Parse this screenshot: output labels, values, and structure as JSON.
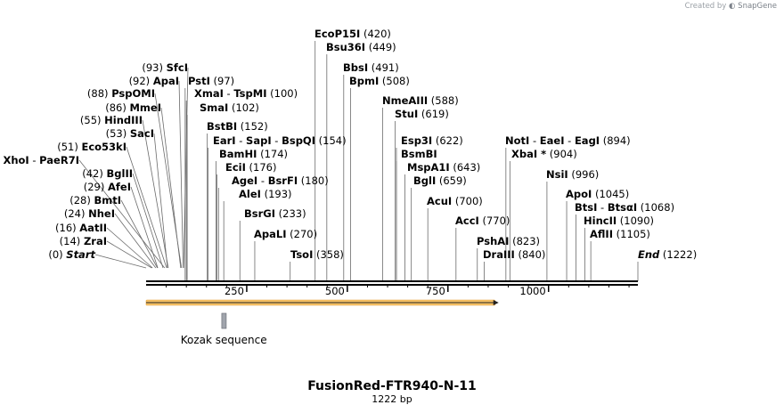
{
  "credit": {
    "prefix": "Created by",
    "brand": "SnapGene"
  },
  "title": "FusionRed-FTR940-N-11",
  "length_label": "1222 bp",
  "sequence_length": 1222,
  "axis_ticks": [
    250,
    500,
    750,
    1000
  ],
  "features": [
    {
      "name": "Kozak sequence",
      "type": "misc",
      "start": 188,
      "end": 198,
      "color": "#a0a4ac"
    },
    {
      "name": "",
      "type": "cds",
      "start": 1,
      "end": 876,
      "color": "#f6c267"
    }
  ],
  "sites": [
    {
      "parts": [
        {
          "t": "Start",
          "italic": true
        }
      ],
      "pos": "(0)",
      "loc": 0
    },
    {
      "parts": [
        {
          "t": "ZraI"
        }
      ],
      "pos": "(14)",
      "loc": 14
    },
    {
      "parts": [
        {
          "t": "AatII"
        }
      ],
      "pos": "(16)",
      "loc": 16
    },
    {
      "parts": [
        {
          "t": "NheI"
        }
      ],
      "pos": "(24)",
      "loc": 24
    },
    {
      "parts": [
        {
          "t": "BmtI"
        }
      ],
      "pos": "(28)",
      "loc": 28
    },
    {
      "parts": [
        {
          "t": "AfeI"
        }
      ],
      "pos": "(29)",
      "loc": 29
    },
    {
      "parts": [
        {
          "t": "BglII"
        }
      ],
      "pos": "(42)",
      "loc": 42
    },
    {
      "parts": [
        {
          "t": "XhoI"
        },
        {
          "t": " - ",
          "plain": true
        },
        {
          "t": "PaeR7I"
        }
      ],
      "pos": "(46)",
      "loc": 46
    },
    {
      "parts": [
        {
          "t": "Eco53kI"
        }
      ],
      "pos": "(51)",
      "loc": 51
    },
    {
      "parts": [
        {
          "t": "SacI"
        }
      ],
      "pos": "(53)",
      "loc": 53
    },
    {
      "parts": [
        {
          "t": "HindIII"
        }
      ],
      "pos": "(55)",
      "loc": 55
    },
    {
      "parts": [
        {
          "t": "MmeI"
        }
      ],
      "pos": "(86)",
      "loc": 86
    },
    {
      "parts": [
        {
          "t": "PspOMI"
        }
      ],
      "pos": "(88)",
      "loc": 88
    },
    {
      "parts": [
        {
          "t": "ApaI"
        }
      ],
      "pos": "(92)",
      "loc": 92
    },
    {
      "parts": [
        {
          "t": "SfcI"
        }
      ],
      "pos": "(93)",
      "loc": 93
    },
    {
      "parts": [
        {
          "t": "PstI"
        }
      ],
      "pos": "(97)",
      "loc": 97
    },
    {
      "parts": [
        {
          "t": "XmaI"
        },
        {
          "t": " - ",
          "plain": true
        },
        {
          "t": "TspMI"
        }
      ],
      "pos": "(100)",
      "loc": 100
    },
    {
      "parts": [
        {
          "t": "SmaI"
        }
      ],
      "pos": "(102)",
      "loc": 102
    },
    {
      "parts": [
        {
          "t": "BstBI"
        }
      ],
      "pos": "(152)",
      "loc": 152
    },
    {
      "parts": [
        {
          "t": "EarI"
        },
        {
          "t": " - ",
          "plain": true
        },
        {
          "t": "SapI"
        },
        {
          "t": " - ",
          "plain": true
        },
        {
          "t": "BspQI"
        }
      ],
      "pos": "(154)",
      "loc": 154
    },
    {
      "parts": [
        {
          "t": "BamHI"
        }
      ],
      "pos": "(174)",
      "loc": 174
    },
    {
      "parts": [
        {
          "t": "EciI"
        }
      ],
      "pos": "(176)",
      "loc": 176
    },
    {
      "parts": [
        {
          "t": "AgeI"
        },
        {
          "t": " - ",
          "plain": true
        },
        {
          "t": "BsrFI"
        }
      ],
      "pos": "(180)",
      "loc": 180
    },
    {
      "parts": [
        {
          "t": "AleI"
        }
      ],
      "pos": "(193)",
      "loc": 193
    },
    {
      "parts": [
        {
          "t": "BsrGI"
        }
      ],
      "pos": "(233)",
      "loc": 233
    },
    {
      "parts": [
        {
          "t": "ApaLI"
        }
      ],
      "pos": "(270)",
      "loc": 270
    },
    {
      "parts": [
        {
          "t": "TsoI"
        }
      ],
      "pos": "(358)",
      "loc": 358
    },
    {
      "parts": [
        {
          "t": "EcoP15I"
        }
      ],
      "pos": "(420)",
      "loc": 420
    },
    {
      "parts": [
        {
          "t": "Bsu36I"
        }
      ],
      "pos": "(449)",
      "loc": 449
    },
    {
      "parts": [
        {
          "t": "BbsI"
        }
      ],
      "pos": "(491)",
      "loc": 491
    },
    {
      "parts": [
        {
          "t": "BpmI"
        }
      ],
      "pos": "(508)",
      "loc": 508
    },
    {
      "parts": [
        {
          "t": "NmeAIII"
        }
      ],
      "pos": "(588)",
      "loc": 588
    },
    {
      "parts": [
        {
          "t": "StuI"
        }
      ],
      "pos": "(619)",
      "loc": 619
    },
    {
      "parts": [
        {
          "t": "Esp3I"
        }
      ],
      "pos": "(622)",
      "loc": 622
    },
    {
      "parts": [
        {
          "t": "BsmBI"
        }
      ],
      "pos": "",
      "loc": 622
    },
    {
      "parts": [
        {
          "t": "MspA1I"
        }
      ],
      "pos": "(643)",
      "loc": 643
    },
    {
      "parts": [
        {
          "t": "BglI"
        }
      ],
      "pos": "(659)",
      "loc": 659
    },
    {
      "parts": [
        {
          "t": "AcuI"
        }
      ],
      "pos": "(700)",
      "loc": 700
    },
    {
      "parts": [
        {
          "t": "AccI"
        }
      ],
      "pos": "(770)",
      "loc": 770
    },
    {
      "parts": [
        {
          "t": "PshAI"
        }
      ],
      "pos": "(823)",
      "loc": 823
    },
    {
      "parts": [
        {
          "t": "DraIII"
        }
      ],
      "pos": "(840)",
      "loc": 840
    },
    {
      "parts": [
        {
          "t": "NotI"
        },
        {
          "t": " - ",
          "plain": true
        },
        {
          "t": "EaeI"
        },
        {
          "t": " - ",
          "plain": true
        },
        {
          "t": "EagI"
        }
      ],
      "pos": "(894)",
      "loc": 894
    },
    {
      "parts": [
        {
          "t": "XbaI *"
        }
      ],
      "pos": "(904)",
      "loc": 904
    },
    {
      "parts": [
        {
          "t": "NsiI"
        }
      ],
      "pos": "(996)",
      "loc": 996
    },
    {
      "parts": [
        {
          "t": "ApoI"
        }
      ],
      "pos": "(1045)",
      "loc": 1045
    },
    {
      "parts": [
        {
          "t": "BtsI"
        },
        {
          "t": " - ",
          "plain": true
        },
        {
          "t": "BtsαI"
        }
      ],
      "pos": "(1068)",
      "loc": 1068
    },
    {
      "parts": [
        {
          "t": "HincII"
        }
      ],
      "pos": "(1090)",
      "loc": 1090
    },
    {
      "parts": [
        {
          "t": "AflII"
        }
      ],
      "pos": "(1105)",
      "loc": 1105
    },
    {
      "parts": [
        {
          "t": "End",
          "italic": true
        }
      ],
      "pos": "(1222)",
      "loc": 1222
    }
  ]
}
